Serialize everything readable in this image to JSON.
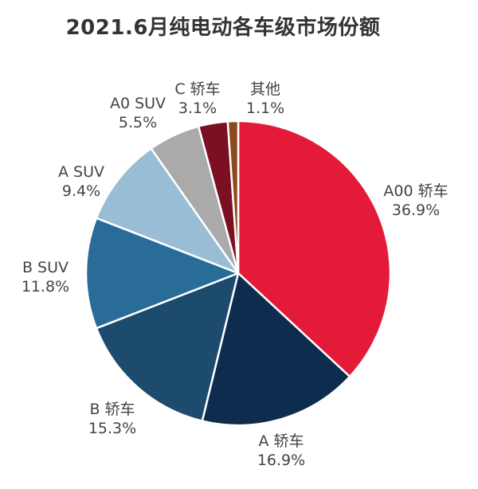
{
  "chart_data": {
    "type": "pie",
    "title": "2021.6月纯电动各车级市场份额",
    "unit": "%",
    "categories": [
      "A00 轿车",
      "A 轿车",
      "B 轿车",
      "B SUV",
      "A SUV",
      "A0 SUV",
      "C 轿车",
      "其他"
    ],
    "values": [
      36.9,
      16.9,
      15.3,
      11.8,
      9.4,
      5.5,
      3.1,
      1.1
    ],
    "value_labels": [
      "36.9%",
      "16.9%",
      "15.3%",
      "11.8%",
      "9.4%",
      "5.5%",
      "3.1%",
      "1.1%"
    ],
    "colors": [
      "#E31B39",
      "#0E2C4E",
      "#1C4B6E",
      "#2A6C98",
      "#98BDD5",
      "#AAAAAA",
      "#7B1023",
      "#8B4A1C"
    ],
    "start_angle": "12 o'clock",
    "direction": "clockwise",
    "legend": "none",
    "labels_position": "outside"
  }
}
